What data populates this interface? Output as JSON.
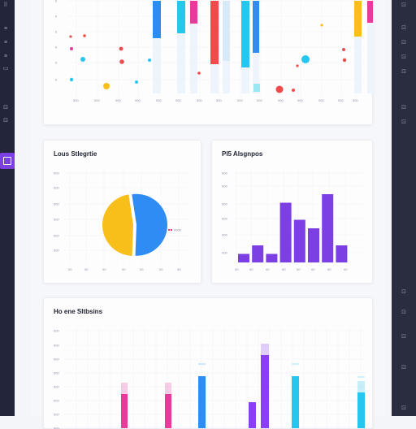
{
  "sidebar": {
    "items": [
      {
        "icon": "grid-icon",
        "glyph": "⠿"
      },
      {
        "icon": "chart-icon",
        "glyph": "≡"
      },
      {
        "icon": "list-icon",
        "glyph": "≡"
      },
      {
        "icon": "layers-icon",
        "glyph": "≡"
      },
      {
        "icon": "folder-icon",
        "glyph": "▭"
      },
      {
        "icon": "tag-icon",
        "glyph": "⊡"
      },
      {
        "icon": "users-icon",
        "glyph": "⊡"
      },
      {
        "icon": "dashboard-icon",
        "glyph": "▣"
      }
    ],
    "active_index": 7
  },
  "rightbar": {
    "items": [
      "⊡",
      "⊡",
      "⊡",
      "⊡",
      "⊡",
      "⊡",
      "⊡",
      "⊡",
      "⊡",
      "⊡",
      "⊡",
      "⊡"
    ]
  },
  "colors": {
    "blue": "#2f8cf2",
    "cyan": "#27c6ef",
    "red": "#ef4b4b",
    "pink": "#e83a9a",
    "purple": "#8a3ff0",
    "yellow": "#f8be1a",
    "violet": "#7b3fe4"
  },
  "panel_top": {
    "y_ticks": [
      "0",
      "0",
      "0",
      "0",
      "0",
      "0"
    ],
    "x_ticks": [
      "000",
      "000",
      "000",
      "000",
      "000",
      "000",
      "000",
      "000",
      "000",
      "000",
      "000",
      "000",
      "000",
      "000",
      "000"
    ]
  },
  "panel_pie": {
    "title": "Lous Stlegrtie",
    "y_ticks": [
      "000",
      "000",
      "000",
      "000",
      "000",
      "000"
    ],
    "x_ticks": [
      "00",
      "00",
      "00",
      "00",
      "00",
      "00",
      "00"
    ],
    "legend": "0000"
  },
  "panel_bar": {
    "title": "Pl5 Alsgnpos",
    "y_ticks": [
      "000",
      "000",
      "000",
      "000",
      "000",
      "000"
    ],
    "x_ticks": [
      "00",
      "00",
      "00",
      "00",
      "00",
      "00",
      "00",
      "00"
    ]
  },
  "panel_bottom": {
    "title": "Ho ene Sltbsins",
    "y_ticks": [
      "000",
      "000",
      "000",
      "000",
      "000",
      "000",
      "000",
      "000"
    ]
  },
  "chart_data": [
    {
      "type": "bar",
      "title": "",
      "series": [
        {
          "values": [
            1,
            2,
            1,
            7,
            5,
            4,
            8,
            2
          ]
        }
      ],
      "ylim": [
        0,
        8
      ]
    },
    {
      "type": "pie",
      "title": "",
      "slices": [
        {
          "value": 53,
          "color": "#2f8cf2"
        },
        {
          "value": 47,
          "color": "#f8be1a"
        }
      ]
    }
  ]
}
